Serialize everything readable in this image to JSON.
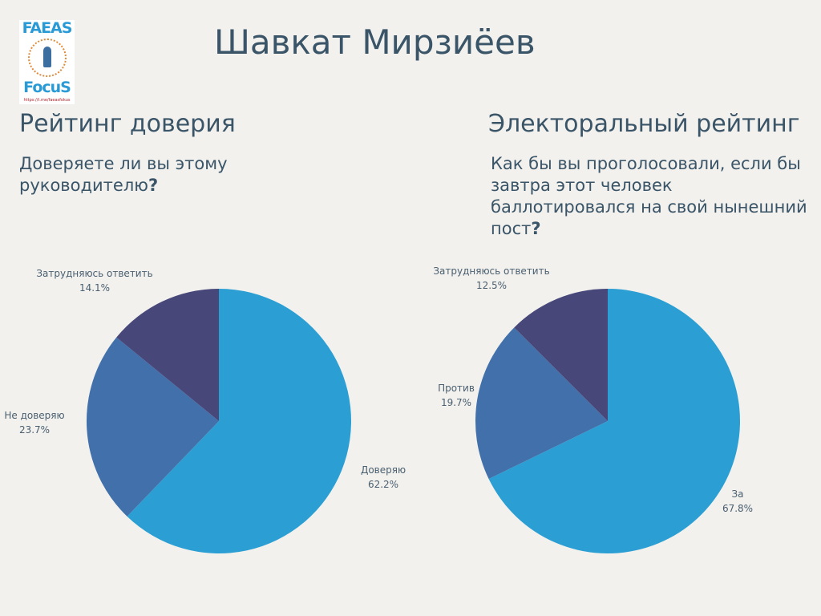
{
  "logo": {
    "top": "FAEAS",
    "bottom": "FocuS",
    "url": "https://t.me/faeasfokus"
  },
  "title": "Шавкат Мирзиёев",
  "colors": {
    "c1": "#2b9fd4",
    "c2": "#4170ab",
    "c3": "#47477a"
  },
  "chart_data": [
    {
      "type": "pie",
      "title": "Рейтинг доверия",
      "question": "Доверяете ли вы этому руководителю",
      "question_mark": "?",
      "categories": [
        "Доверяю",
        "Не доверяю",
        "Затрудняюсь ответить"
      ],
      "values": [
        62.2,
        23.7,
        14.1
      ],
      "labels": [
        "62.2%",
        "23.7%",
        "14.1%"
      ]
    },
    {
      "type": "pie",
      "title": "Электоральный рейтинг",
      "question": "Как бы вы проголосовали, если бы завтра этот человек баллотировался на свой нынешний пост",
      "question_mark": "?",
      "categories": [
        "За",
        "Против",
        "Затрудняюсь ответить"
      ],
      "values": [
        67.8,
        19.7,
        12.5
      ],
      "labels": [
        "67.8%",
        "19.7%",
        "12.5%"
      ]
    }
  ]
}
